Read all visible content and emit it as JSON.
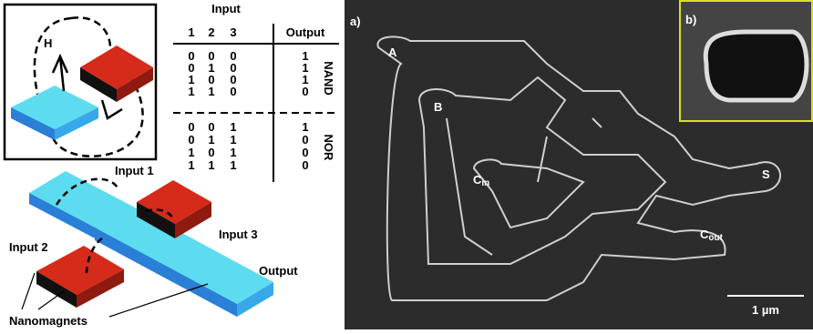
{
  "field_diagram": {
    "field_label": "H"
  },
  "truth_table": {
    "group_header": "Input",
    "columns": [
      1,
      2,
      3,
      "Output"
    ],
    "rows": [
      [
        0,
        0,
        0,
        1
      ],
      [
        0,
        1,
        0,
        1
      ],
      [
        1,
        0,
        0,
        1
      ],
      [
        1,
        1,
        0,
        0
      ],
      [
        0,
        0,
        1,
        1
      ],
      [
        0,
        1,
        1,
        0
      ],
      [
        1,
        0,
        1,
        0
      ],
      [
        1,
        1,
        1,
        0
      ]
    ],
    "groups": [
      "NAND",
      "NOR"
    ]
  },
  "gate_diagram": {
    "input_1": "Input 1",
    "input_2": "Input 2",
    "input_3": "Input 3",
    "output": "Output",
    "nanomagnets": "Nanomagnets"
  },
  "micrograph": {
    "panel_a": "a)",
    "panel_b": "b)",
    "nodes": [
      {
        "label": "A"
      },
      {
        "label": "B"
      },
      {
        "label": "C",
        "subscript": "in"
      },
      {
        "label": "S"
      },
      {
        "label": "C",
        "subscript": "out"
      }
    ],
    "scale_bar": "1 µm"
  }
}
